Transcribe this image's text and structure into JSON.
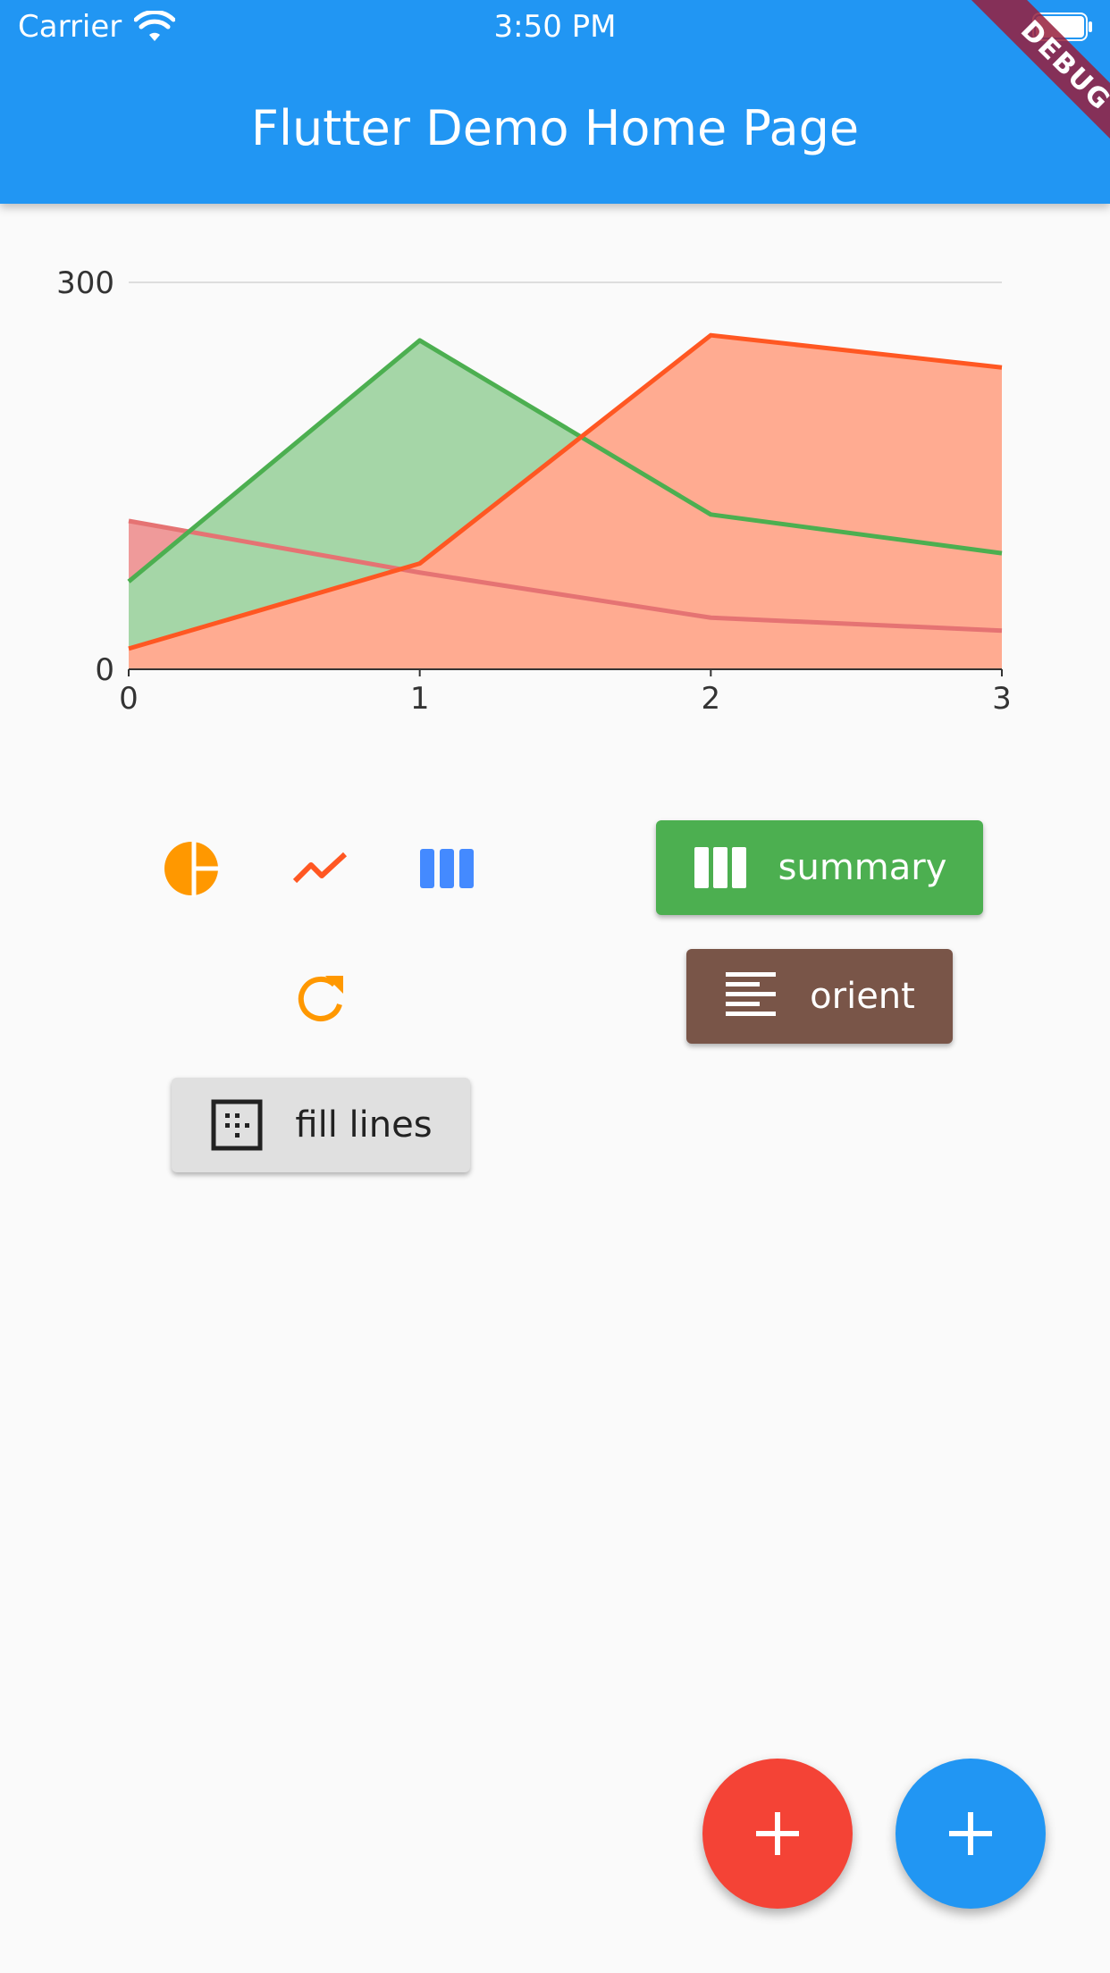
{
  "status_bar": {
    "carrier": "Carrier",
    "time": "3:50 PM",
    "wifi_icon": "wifi-icon",
    "battery_icon": "battery-icon"
  },
  "app_bar": {
    "title": "Flutter Demo Home Page",
    "debug_banner": "DEBUG"
  },
  "chart_data": {
    "type": "area",
    "x": [
      0,
      1,
      2,
      3
    ],
    "x_ticks": [
      "0",
      "1",
      "2",
      "3"
    ],
    "y_ticks": [
      "0",
      "300"
    ],
    "ylim": [
      0,
      300
    ],
    "grid": true,
    "series": [
      {
        "values": [
          115,
          75,
          40,
          30
        ],
        "color": "#e57373",
        "fill": "#ef9a9a"
      },
      {
        "values": [
          68,
          255,
          120,
          90
        ],
        "color": "#4caf50",
        "fill": "#a5d6a7"
      },
      {
        "values": [
          16,
          82,
          259,
          234
        ],
        "color": "#ff5722",
        "fill": "#ffab91"
      }
    ]
  },
  "controls": {
    "pie_icon": "pie-chart-icon",
    "line_icon": "show-chart-icon",
    "bar_icon": "bar-chart-icon",
    "refresh_icon": "refresh-icon",
    "summary_label": "summary",
    "orient_label": "orient",
    "fill_lines_label": "fill lines"
  },
  "fabs": {
    "red_icon": "add-icon",
    "blue_icon": "add-icon"
  },
  "colors": {
    "app_bar": "#2196f3",
    "summary_button": "#4caf50",
    "orient_button": "#795548",
    "fill_lines_button": "#e0e0e0",
    "fab_red": "#f44336",
    "fab_blue": "#2196f3",
    "pie_icon": "#ff9800",
    "line_icon": "#ff5722",
    "bar_icon": "#448aff",
    "refresh_icon": "#ff9800"
  }
}
